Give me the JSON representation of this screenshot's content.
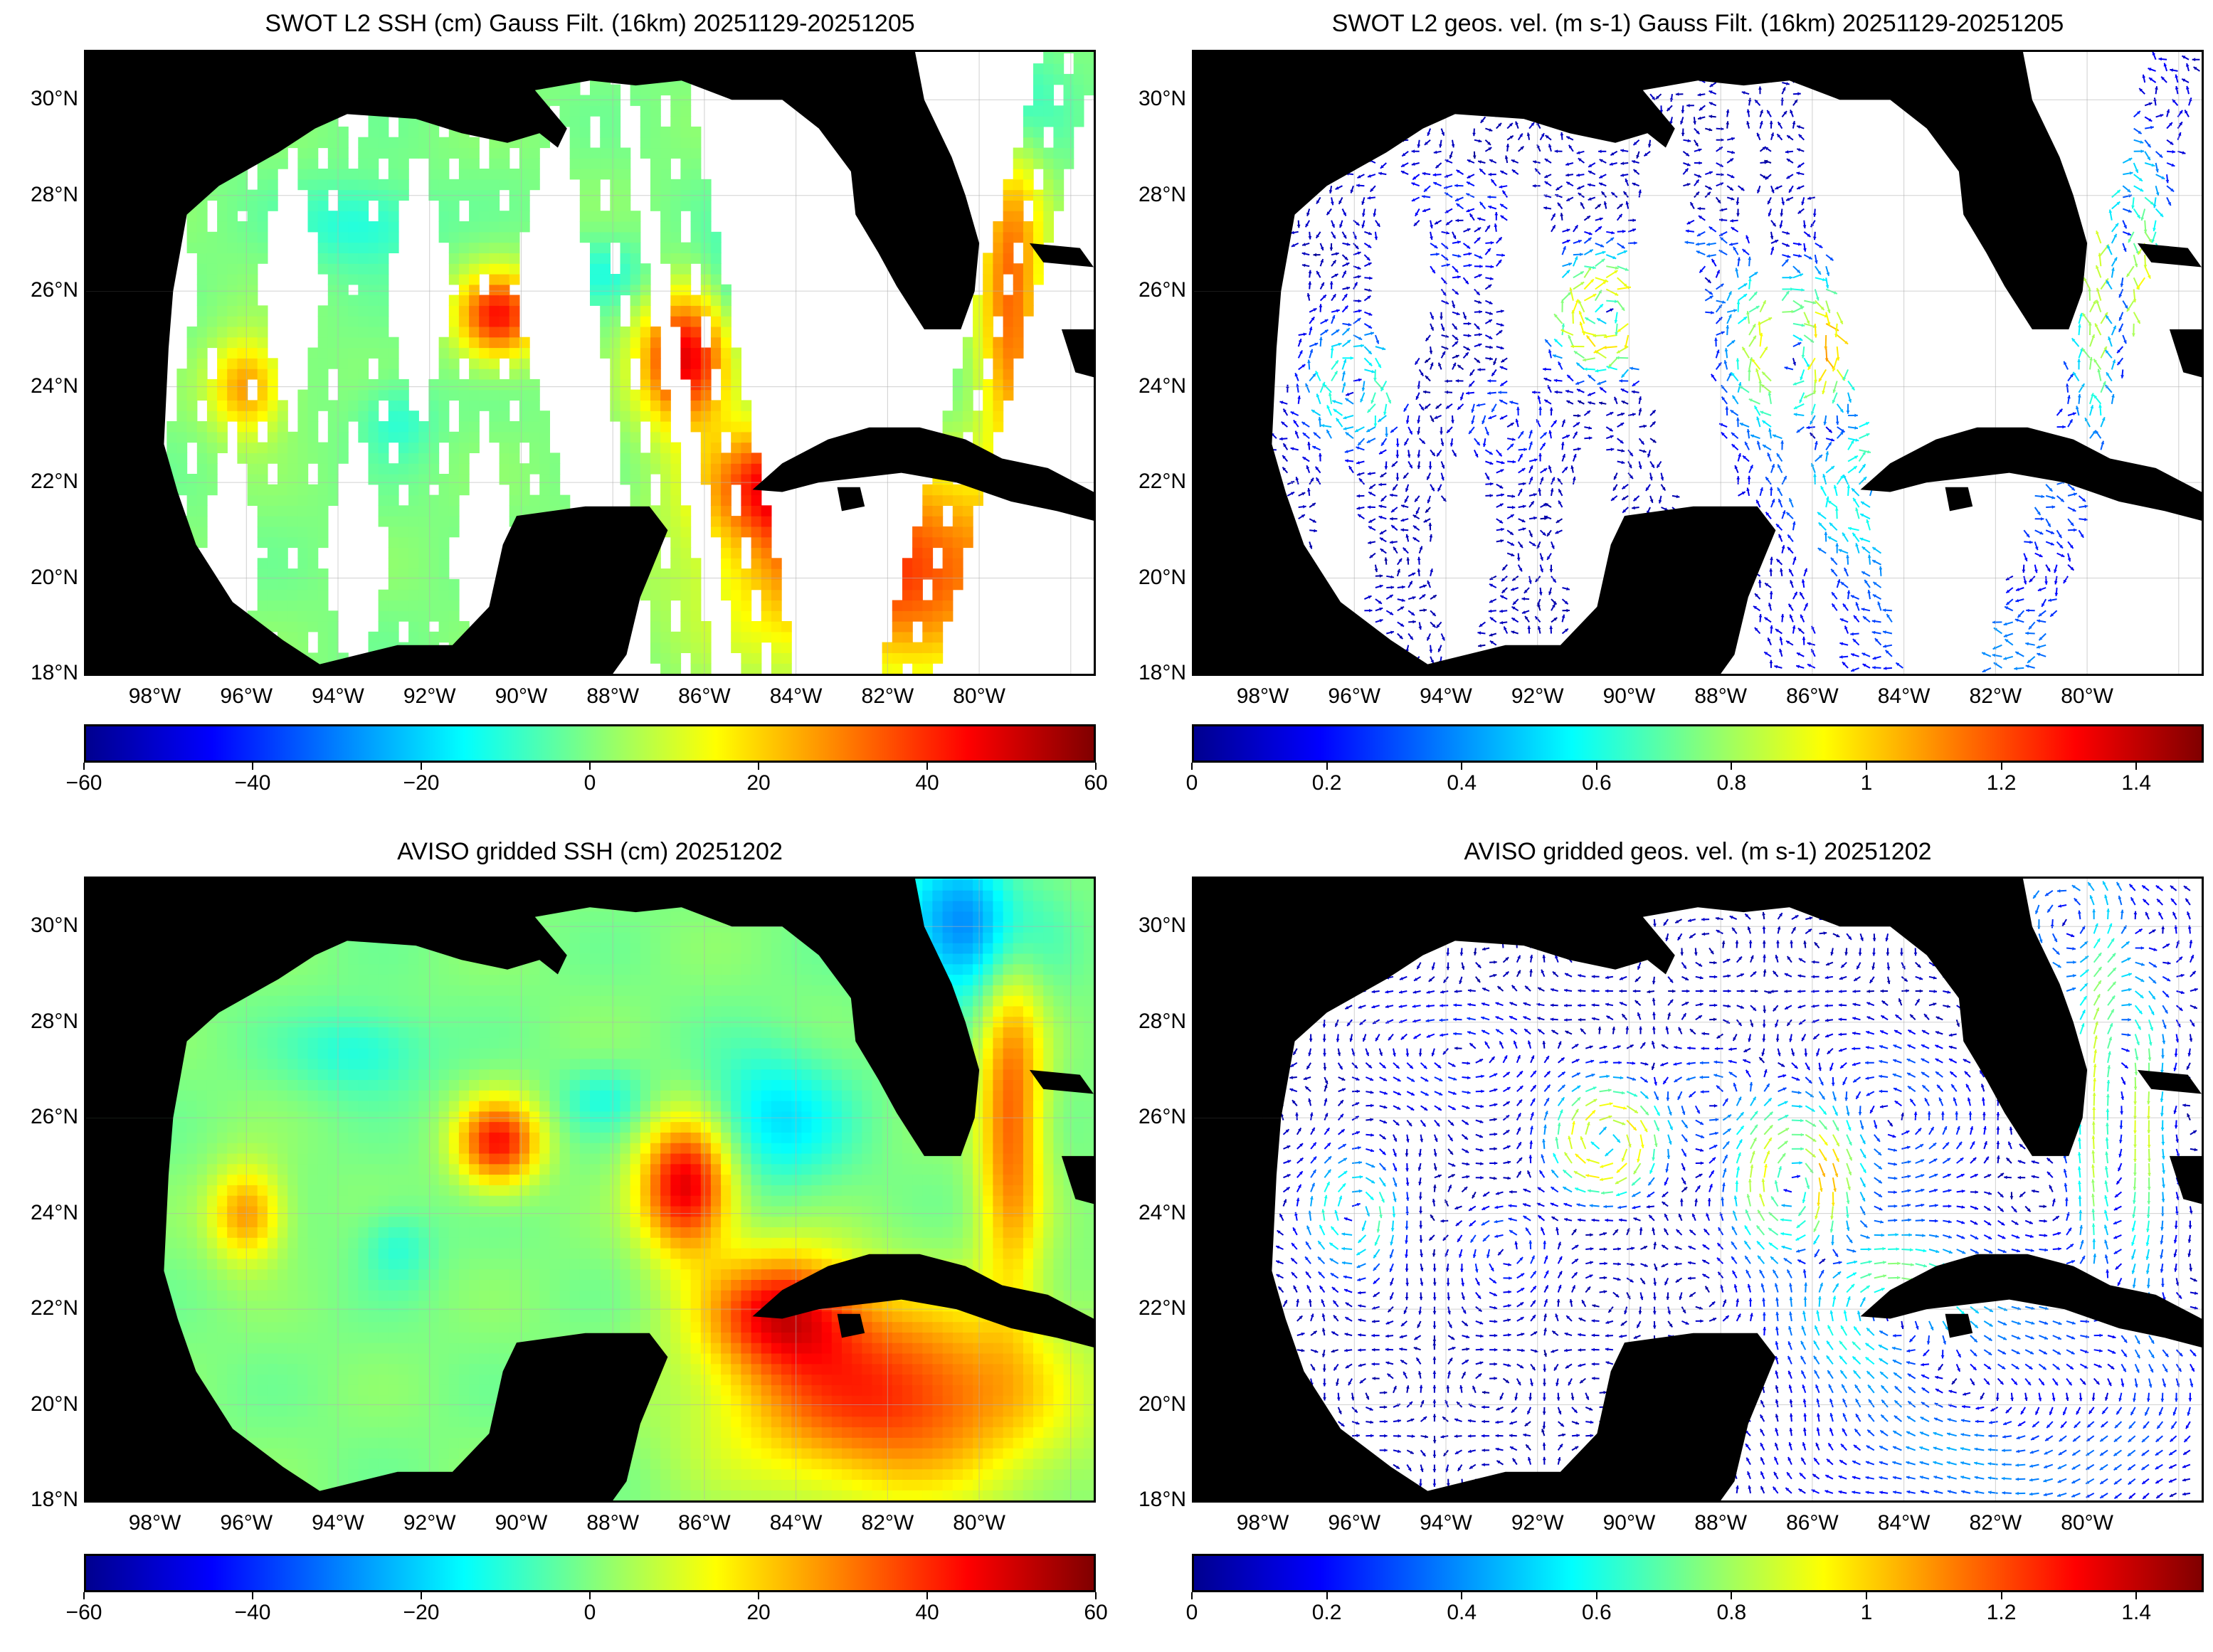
{
  "panels": [
    {
      "id": "swot-ssh",
      "title": "SWOT L2 SSH (cm) Gauss Filt. (16km) 20251129-20251205",
      "kind": "swath-ssh",
      "colorbar_ticks": [
        "-60",
        "-40",
        "-20",
        "0",
        "20",
        "40",
        "60"
      ]
    },
    {
      "id": "swot-vel",
      "title": "SWOT L2 geos. vel. (m s-1) Gauss Filt. (16km) 20251129-20251205",
      "kind": "swath-vel",
      "colorbar_ticks": [
        "0",
        "0.2",
        "0.4",
        "0.6",
        "0.8",
        "1",
        "1.2",
        "1.4"
      ]
    },
    {
      "id": "aviso-ssh",
      "title": "AVISO gridded SSH (cm) 20251202",
      "kind": "grid-ssh",
      "colorbar_ticks": [
        "-60",
        "-40",
        "-20",
        "0",
        "20",
        "40",
        "60"
      ]
    },
    {
      "id": "aviso-vel",
      "title": "AVISO gridded geos. vel. (m s-1)  20251202",
      "kind": "grid-vel",
      "colorbar_ticks": [
        "0",
        "0.2",
        "0.4",
        "0.6",
        "0.8",
        "1",
        "1.2",
        "1.4"
      ]
    }
  ],
  "lat_labels": [
    "30°N",
    "28°N",
    "26°N",
    "24°N",
    "22°N",
    "20°N",
    "18°N"
  ],
  "lon_labels": [
    "98°W",
    "96°W",
    "94°W",
    "92°W",
    "90°W",
    "88°W",
    "86°W",
    "84°W",
    "82°W",
    "80°W"
  ],
  "map_extent": {
    "lon_min": -99.5,
    "lon_max": -77.5,
    "lat_min": 18,
    "lat_max": 31
  },
  "ssh_range": [
    -60,
    60
  ],
  "vel_range": [
    0,
    1.5
  ],
  "colormap": "jet",
  "colors": {
    "land": "#000000",
    "no_data": "#ffffff",
    "grid": "#b0b0b0"
  }
}
